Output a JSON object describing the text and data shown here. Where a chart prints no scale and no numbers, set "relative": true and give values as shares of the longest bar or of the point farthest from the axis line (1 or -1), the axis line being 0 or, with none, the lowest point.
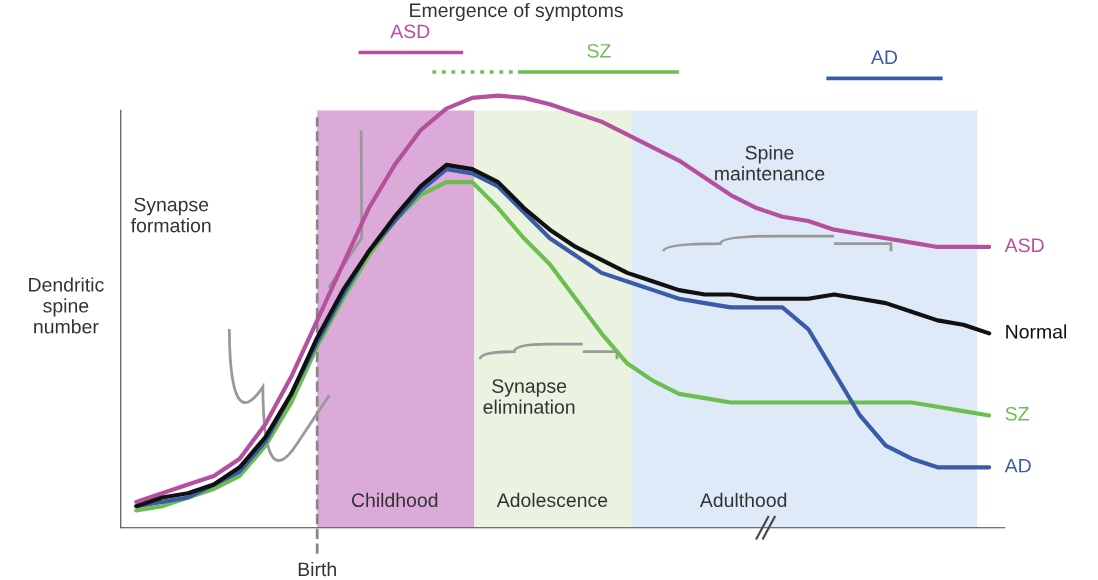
{
  "chart_data": {
    "type": "line",
    "relative": true,
    "title": "Emergence of symptoms",
    "ylabel": "Dendritic\nspine\nnumber",
    "categories": [
      null,
      null,
      null,
      null,
      null,
      null,
      null,
      null,
      null,
      null,
      null,
      null,
      null,
      null,
      null,
      null,
      null,
      null,
      null,
      null,
      null,
      null,
      null,
      null,
      null,
      null,
      null,
      null,
      null,
      null,
      null,
      null,
      null,
      null
    ],
    "series": [
      {
        "name": "ASD",
        "color": "#b5509f",
        "values": [
          0.06,
          0.08,
          0.1,
          0.12,
          0.16,
          0.24,
          0.35,
          0.48,
          0.61,
          0.74,
          0.84,
          0.92,
          0.97,
          0.995,
          1.0,
          0.995,
          0.98,
          0.96,
          0.94,
          0.91,
          0.88,
          0.85,
          0.81,
          0.77,
          0.74,
          0.72,
          0.71,
          0.69,
          0.68,
          0.67,
          0.66,
          0.65,
          0.65,
          0.65
        ]
      },
      {
        "name": "SZ",
        "color": "#6cbf4f",
        "values": [
          0.04,
          0.05,
          0.07,
          0.09,
          0.12,
          0.19,
          0.29,
          0.42,
          0.53,
          0.63,
          0.71,
          0.77,
          0.8,
          0.8,
          0.74,
          0.67,
          0.61,
          0.53,
          0.45,
          0.38,
          0.34,
          0.31,
          0.3,
          0.29,
          0.29,
          0.29,
          0.29,
          0.29,
          0.29,
          0.29,
          0.29,
          0.28,
          0.27,
          0.26
        ]
      },
      {
        "name": "AD",
        "color": "#3a5ba8",
        "values": [
          0.05,
          0.06,
          0.07,
          0.1,
          0.13,
          0.2,
          0.31,
          0.43,
          0.54,
          0.64,
          0.71,
          0.78,
          0.83,
          0.82,
          0.79,
          0.73,
          0.67,
          0.63,
          0.59,
          0.57,
          0.55,
          0.53,
          0.52,
          0.51,
          0.51,
          0.51,
          0.46,
          0.36,
          0.26,
          0.19,
          0.16,
          0.14,
          0.14,
          0.14
        ]
      },
      {
        "name": "Normal",
        "color": "#111111",
        "values": [
          0.05,
          0.07,
          0.08,
          0.1,
          0.14,
          0.21,
          0.31,
          0.44,
          0.55,
          0.64,
          0.72,
          0.79,
          0.84,
          0.83,
          0.8,
          0.74,
          0.69,
          0.65,
          0.62,
          0.59,
          0.57,
          0.55,
          0.54,
          0.54,
          0.53,
          0.53,
          0.53,
          0.54,
          0.53,
          0.52,
          0.5,
          0.48,
          0.47,
          0.45
        ]
      }
    ],
    "annotations": [
      "Synapse formation",
      "Synapse elimination",
      "Spine maintenance",
      "Childhood",
      "Adolescence",
      "Adulthood",
      "Birth",
      "ASD",
      "SZ",
      "AD"
    ],
    "grid": false,
    "legend": false,
    "marker": "none",
    "line_style": "solid"
  }
}
